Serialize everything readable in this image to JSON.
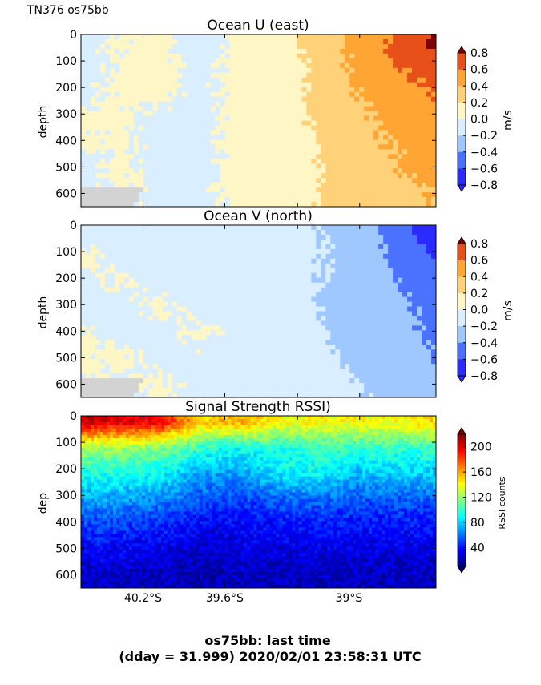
{
  "header": "TN376 os75bb",
  "footer": {
    "line1": "os75bb: last time",
    "line2": "(dday = 31.999) 2020/02/01 23:58:31 UTC"
  },
  "colors": {
    "nodata": "#d3d3d3",
    "jet": [
      "#00007f",
      "#0000ff",
      "#007fff",
      "#00ffff",
      "#7fff7f",
      "#ffff00",
      "#ff7f00",
      "#ff0000",
      "#7f0000"
    ],
    "diverging": [
      "#2b2bff",
      "#4a72ff",
      "#9ec8ff",
      "#d9eeff",
      "#fff6c6",
      "#ffd27a",
      "#ffa534",
      "#e8501a",
      "#7a0000"
    ]
  },
  "chart_data": [
    {
      "type": "heatmap",
      "title": "Ocean U (east)",
      "ylabel": "depth",
      "xlabel": "",
      "ylim": [
        650,
        0
      ],
      "yticks": [
        0,
        100,
        200,
        300,
        400,
        500,
        600
      ],
      "xticks": [
        "",
        "",
        "",
        ""
      ],
      "colorbar": {
        "label": "m/s",
        "range": [
          -0.8,
          0.8
        ],
        "ticks": [
          "0.8",
          "0.6",
          "0.4",
          "0.2",
          "0.0",
          "−0.2",
          "−0.4",
          "−0.6",
          "−0.8"
        ]
      },
      "x_latitude_S": [
        40.37,
        40.2,
        40.0,
        39.8,
        39.6,
        39.4,
        39.2,
        39.0,
        38.8,
        38.6
      ],
      "depth": [
        25,
        100,
        200,
        300,
        400,
        500,
        600
      ],
      "values": [
        [
          -0.05,
          0.02,
          0.05,
          -0.1,
          0.05,
          0.08,
          0.3,
          0.45,
          0.65,
          0.85
        ],
        [
          -0.05,
          0.02,
          0.05,
          -0.05,
          0.05,
          0.08,
          0.25,
          0.45,
          0.6,
          0.7
        ],
        [
          -0.05,
          0.03,
          0.05,
          -0.05,
          0.05,
          0.05,
          0.25,
          0.4,
          0.5,
          0.6
        ],
        [
          0.02,
          0.03,
          -0.05,
          -0.05,
          0.05,
          0.05,
          0.25,
          0.35,
          0.45,
          0.55
        ],
        [
          0.02,
          0.03,
          -0.05,
          -0.05,
          0.05,
          0.05,
          0.2,
          0.35,
          0.4,
          0.5
        ],
        [
          -0.05,
          0.03,
          -0.05,
          -0.05,
          0.05,
          0.05,
          0.2,
          0.3,
          0.4,
          0.45
        ],
        [
          -0.05,
          0.03,
          -0.05,
          -0.05,
          0.05,
          0.05,
          0.2,
          0.3,
          0.35,
          0.4
        ]
      ],
      "nodata": "bottom-left"
    },
    {
      "type": "heatmap",
      "title": "Ocean V (north)",
      "ylabel": "depth",
      "xlabel": "",
      "ylim": [
        650,
        0
      ],
      "yticks": [
        0,
        100,
        200,
        300,
        400,
        500,
        600
      ],
      "xticks": [
        "",
        "",
        "",
        ""
      ],
      "colorbar": {
        "label": "m/s",
        "range": [
          -0.8,
          0.8
        ],
        "ticks": [
          "0.8",
          "0.6",
          "0.4",
          "0.2",
          "0.0",
          "−0.2",
          "−0.4",
          "−0.6",
          "−0.8"
        ]
      },
      "x_latitude_S": [
        40.37,
        40.2,
        40.0,
        39.8,
        39.6,
        39.4,
        39.2,
        39.0,
        38.8,
        38.6
      ],
      "depth": [
        25,
        100,
        200,
        300,
        400,
        500,
        600
      ],
      "values": [
        [
          -0.05,
          -0.05,
          -0.05,
          -0.05,
          -0.05,
          -0.05,
          -0.2,
          -0.25,
          -0.5,
          -0.75
        ],
        [
          0.03,
          -0.05,
          -0.15,
          -0.05,
          -0.05,
          -0.05,
          -0.2,
          -0.25,
          -0.45,
          -0.6
        ],
        [
          -0.05,
          0.03,
          -0.05,
          -0.05,
          -0.05,
          -0.05,
          -0.2,
          -0.25,
          -0.4,
          -0.5
        ],
        [
          -0.05,
          -0.05,
          0.03,
          -0.05,
          -0.05,
          -0.05,
          -0.2,
          -0.3,
          -0.35,
          -0.45
        ],
        [
          0.03,
          -0.05,
          -0.05,
          0.03,
          -0.05,
          -0.05,
          -0.15,
          -0.3,
          -0.3,
          -0.45
        ],
        [
          0.03,
          0.03,
          -0.05,
          -0.05,
          -0.05,
          -0.05,
          -0.15,
          -0.25,
          -0.25,
          -0.4
        ],
        [
          0.03,
          -0.05,
          0.03,
          -0.05,
          -0.05,
          -0.05,
          -0.05,
          -0.2,
          -0.25,
          -0.35
        ]
      ],
      "nodata": "bottom-left"
    },
    {
      "type": "heatmap",
      "title": "Signal Strength RSSI)",
      "ylabel": "dep",
      "xlabel": "",
      "ylim": [
        650,
        0
      ],
      "yticks": [
        0,
        100,
        200,
        300,
        400,
        500,
        600
      ],
      "xticks": [
        "40.2°S",
        "39.6°S",
        "39°S"
      ],
      "colorbar": {
        "label": "RSSI counts",
        "range": [
          10,
          220
        ],
        "ticks": [
          "200",
          "160",
          "120",
          "80",
          "40"
        ],
        "tick_values": [
          200,
          160,
          120,
          80,
          40
        ]
      },
      "x_latitude_S": [
        40.37,
        40.2,
        40.0,
        39.8,
        39.6,
        39.4,
        39.2,
        39.0,
        38.8,
        38.6
      ],
      "depth": [
        25,
        100,
        200,
        300,
        400,
        500,
        600
      ],
      "values": [
        [
          205,
          200,
          195,
          150,
          160,
          140,
          140,
          140,
          140,
          150
        ],
        [
          120,
          120,
          115,
          100,
          90,
          95,
          100,
          100,
          100,
          100
        ],
        [
          95,
          95,
          90,
          70,
          70,
          85,
          90,
          75,
          80,
          80
        ],
        [
          70,
          70,
          65,
          55,
          50,
          55,
          60,
          55,
          55,
          55
        ],
        [
          50,
          50,
          45,
          35,
          35,
          40,
          40,
          40,
          40,
          40
        ],
        [
          35,
          35,
          30,
          25,
          30,
          30,
          30,
          30,
          30,
          30
        ],
        [
          25,
          25,
          22,
          20,
          22,
          22,
          22,
          22,
          22,
          22
        ]
      ],
      "nodata": "none"
    }
  ]
}
